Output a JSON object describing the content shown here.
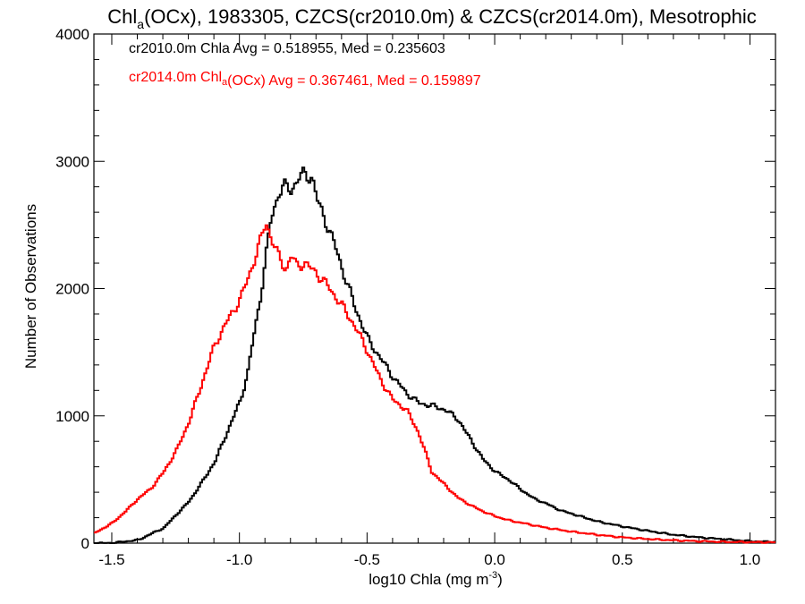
{
  "chart_data": {
    "type": "line",
    "step": true,
    "title": {
      "prefix": "Chl",
      "subscript": "a",
      "rest": "(OCx), 1983305, CZCS(cr2010.0m) & CZCS(cr2014.0m), Mesotrophic"
    },
    "xlabel": {
      "main": "log10 Chla (mg m",
      "sup": "-3",
      "close": ")"
    },
    "ylabel": "Number of Observations",
    "xlim": [
      -1.57,
      1.1
    ],
    "ylim": [
      0,
      4000
    ],
    "xticks": [
      -1.5,
      -1.0,
      -0.5,
      0.0,
      0.5,
      1.0
    ],
    "xtick_labels": [
      "-1.5",
      "-1.0",
      "-0.5",
      "0.0",
      "0.5",
      "1.0"
    ],
    "yticks": [
      0,
      1000,
      2000,
      3000,
      4000
    ],
    "ytick_labels": [
      "0",
      "1000",
      "2000",
      "3000",
      "4000"
    ],
    "grid": false,
    "legend_position": "top-left",
    "annotations": [
      {
        "color": "#000000",
        "parts": [
          {
            "text": "cr2010.0m Chla Avg = 0.518955, Med = 0.235603",
            "sub": ""
          }
        ]
      },
      {
        "color": "#ff0000",
        "parts": [
          {
            "text": "cr2014.0m Chl",
            "sub": "a"
          },
          {
            "text": "(OCx) Avg = 0.367461, Med = 0.159897",
            "sub": ""
          }
        ]
      }
    ],
    "series": [
      {
        "color": "#000000",
        "x": [
          -1.57,
          -1.5,
          -1.4,
          -1.3,
          -1.2,
          -1.15,
          -1.1,
          -1.05,
          -1.0,
          -0.97,
          -0.95,
          -0.92,
          -0.9,
          -0.88,
          -0.85,
          -0.83,
          -0.8,
          -0.77,
          -0.75,
          -0.72,
          -0.7,
          -0.68,
          -0.65,
          -0.62,
          -0.6,
          -0.55,
          -0.5,
          -0.45,
          -0.4,
          -0.35,
          -0.3,
          -0.25,
          -0.2,
          -0.15,
          -0.1,
          -0.05,
          0.0,
          0.05,
          0.1,
          0.15,
          0.2,
          0.25,
          0.3,
          0.35,
          0.4,
          0.5,
          0.6,
          0.7,
          0.8,
          0.9,
          1.0,
          1.1
        ],
        "y": [
          0,
          2,
          25,
          120,
          330,
          480,
          640,
          880,
          1120,
          1350,
          1600,
          1950,
          2250,
          2550,
          2750,
          2800,
          2780,
          2870,
          2900,
          2880,
          2700,
          2600,
          2450,
          2280,
          2150,
          1850,
          1600,
          1450,
          1300,
          1180,
          1100,
          1080,
          1050,
          980,
          820,
          660,
          560,
          500,
          420,
          350,
          310,
          260,
          230,
          200,
          170,
          130,
          95,
          65,
          45,
          30,
          15,
          10
        ]
      },
      {
        "color": "#ff0000",
        "x": [
          -1.57,
          -1.5,
          -1.45,
          -1.4,
          -1.35,
          -1.3,
          -1.25,
          -1.2,
          -1.15,
          -1.1,
          -1.05,
          -1.0,
          -0.97,
          -0.95,
          -0.92,
          -0.9,
          -0.88,
          -0.85,
          -0.82,
          -0.8,
          -0.78,
          -0.75,
          -0.7,
          -0.65,
          -0.6,
          -0.55,
          -0.5,
          -0.45,
          -0.4,
          -0.35,
          -0.3,
          -0.25,
          -0.2,
          -0.15,
          -0.1,
          -0.05,
          0.0,
          0.05,
          0.1,
          0.15,
          0.2,
          0.3,
          0.4,
          0.5,
          0.6,
          0.7,
          0.8,
          0.9,
          1.0,
          1.1
        ],
        "y": [
          80,
          160,
          250,
          350,
          430,
          560,
          730,
          960,
          1260,
          1560,
          1750,
          1920,
          2080,
          2200,
          2380,
          2530,
          2400,
          2250,
          2150,
          2260,
          2180,
          2200,
          2120,
          2000,
          1860,
          1700,
          1500,
          1280,
          1120,
          1050,
          860,
          560,
          460,
          360,
          300,
          250,
          210,
          180,
          160,
          140,
          120,
          90,
          65,
          45,
          32,
          22,
          15,
          10,
          8,
          6
        ]
      }
    ]
  }
}
